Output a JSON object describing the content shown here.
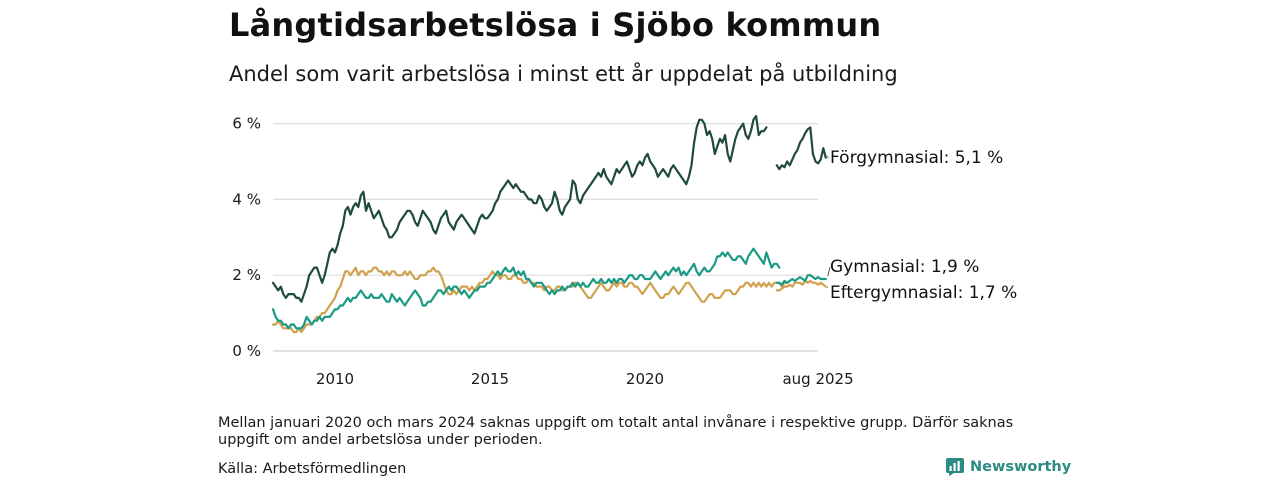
{
  "title": "Långtidsarbetslösa i Sjöbo kommun",
  "subtitle": "Andel som varit arbetslösa i minst ett år uppdelat på utbildning",
  "note": "Mellan januari 2020 och mars 2024 saknas uppgift om totalt antal invånare i respektive grupp. Därför saknas uppgift om andel arbetslösa under perioden.",
  "source": "Källa: Arbetsförmedlingen",
  "brand": "Newsworthy",
  "chart_data": {
    "type": "line",
    "yticks": [
      "0 %",
      "2 %",
      "4 %",
      "6 %"
    ],
    "ylim": [
      0,
      6.6
    ],
    "xticks": [
      "2010",
      "2015",
      "2020",
      "aug 2025"
    ],
    "grid": true,
    "series": [
      {
        "name": "Förgymnasial",
        "label": "Förgymnasial: 5,1 %",
        "color": "#1f4a3e",
        "segments": [
          {
            "start": "2008-01",
            "values": [
              1.8,
              1.7,
              1.6,
              1.7,
              1.5,
              1.4,
              1.5,
              1.5,
              1.5,
              1.4,
              1.4,
              1.3,
              1.5,
              1.7,
              2.0,
              2.1,
              2.2,
              2.2,
              2.0,
              1.8,
              2.0,
              2.3,
              2.6,
              2.7,
              2.6,
              2.8,
              3.1,
              3.3,
              3.7,
              3.8,
              3.6,
              3.8,
              3.9,
              3.8,
              4.1,
              4.2,
              3.7,
              3.9,
              3.7,
              3.5,
              3.6,
              3.7,
              3.5,
              3.3,
              3.2,
              3.0,
              3.0,
              3.1,
              3.2,
              3.4,
              3.5,
              3.6,
              3.7,
              3.7,
              3.6,
              3.4,
              3.3,
              3.5,
              3.7,
              3.6,
              3.5,
              3.4,
              3.2,
              3.1,
              3.3,
              3.5,
              3.6,
              3.7,
              3.4,
              3.3,
              3.2,
              3.4,
              3.5,
              3.6,
              3.5,
              3.4,
              3.3,
              3.2,
              3.1,
              3.3,
              3.5,
              3.6,
              3.5,
              3.5,
              3.6,
              3.7,
              3.9,
              4.0,
              4.2,
              4.3,
              4.4,
              4.5,
              4.4,
              4.3,
              4.4,
              4.3,
              4.2,
              4.2,
              4.1,
              4.0,
              4.0,
              3.9,
              3.9,
              4.1,
              4.0,
              3.8,
              3.7,
              3.8,
              3.9,
              4.2,
              4.0,
              3.7,
              3.6,
              3.8,
              3.9,
              4.0,
              4.5,
              4.4,
              4.0,
              3.9,
              4.1,
              4.2,
              4.3,
              4.4,
              4.5,
              4.6,
              4.7,
              4.6,
              4.8,
              4.6,
              4.5,
              4.4,
              4.6,
              4.8,
              4.7,
              4.8,
              4.9,
              5.0,
              4.8,
              4.6,
              4.7,
              4.9,
              5.0,
              4.9,
              5.1,
              5.2,
              5.0,
              4.9,
              4.8,
              4.6,
              4.7,
              4.8,
              4.7,
              4.6,
              4.8,
              4.9,
              4.8,
              4.7,
              4.6,
              4.5,
              4.4,
              4.6,
              4.9,
              5.5,
              5.9,
              6.1,
              6.1,
              6.0,
              5.7,
              5.8,
              5.6,
              5.2,
              5.4,
              5.6,
              5.5,
              5.7,
              5.2,
              5.0,
              5.3,
              5.6,
              5.8,
              5.9,
              6.0,
              5.7,
              5.6,
              5.8,
              6.1,
              6.2,
              5.7,
              5.8,
              5.8,
              5.9
            ]
          },
          {
            "start": "2024-04",
            "values": [
              4.9,
              4.8,
              4.9,
              4.85,
              5.0,
              4.9,
              5.05,
              5.2,
              5.3,
              5.5,
              5.6,
              5.75,
              5.85,
              5.9,
              5.2,
              5.0,
              4.95,
              5.05,
              5.35,
              5.1
            ]
          }
        ]
      },
      {
        "name": "Gymnasial",
        "label": "Gymnasial: 1,9 %",
        "color": "#1a9a85",
        "segments": [
          {
            "start": "2008-01",
            "values": [
              1.1,
              0.9,
              0.8,
              0.8,
              0.7,
              0.7,
              0.6,
              0.7,
              0.7,
              0.6,
              0.6,
              0.6,
              0.7,
              0.9,
              0.8,
              0.7,
              0.8,
              0.8,
              0.9,
              0.8,
              0.9,
              0.9,
              0.9,
              1.0,
              1.1,
              1.1,
              1.2,
              1.2,
              1.3,
              1.4,
              1.3,
              1.4,
              1.4,
              1.5,
              1.6,
              1.5,
              1.4,
              1.4,
              1.5,
              1.4,
              1.4,
              1.4,
              1.5,
              1.4,
              1.3,
              1.3,
              1.5,
              1.4,
              1.3,
              1.4,
              1.3,
              1.2,
              1.3,
              1.4,
              1.5,
              1.6,
              1.5,
              1.4,
              1.2,
              1.2,
              1.3,
              1.3,
              1.4,
              1.5,
              1.6,
              1.6,
              1.5,
              1.6,
              1.7,
              1.6,
              1.7,
              1.7,
              1.6,
              1.5,
              1.6,
              1.5,
              1.4,
              1.5,
              1.6,
              1.6,
              1.7,
              1.7,
              1.7,
              1.8,
              1.8,
              1.9,
              2.0,
              2.1,
              2.0,
              2.1,
              2.2,
              2.1,
              2.1,
              2.2,
              2.0,
              2.1,
              2.0,
              2.1,
              1.9,
              1.9,
              1.8,
              1.7,
              1.8,
              1.8,
              1.8,
              1.7,
              1.6,
              1.5,
              1.6,
              1.5,
              1.6,
              1.6,
              1.7,
              1.6,
              1.7,
              1.7,
              1.8,
              1.7,
              1.8,
              1.7,
              1.8,
              1.7,
              1.7,
              1.8,
              1.9,
              1.8,
              1.8,
              1.9,
              1.8,
              1.8,
              1.9,
              1.8,
              1.9,
              1.8,
              1.9,
              1.9,
              1.8,
              1.9,
              2.0,
              2.0,
              1.9,
              1.9,
              2.0,
              2.0,
              1.9,
              1.9,
              1.9,
              2.0,
              2.1,
              2.0,
              1.9,
              2.0,
              2.1,
              2.0,
              2.1,
              2.2,
              2.1,
              2.2,
              2.0,
              2.1,
              2.0,
              2.1,
              2.2,
              2.3,
              2.1,
              2.0,
              2.1,
              2.2,
              2.1,
              2.1,
              2.2,
              2.3,
              2.5,
              2.5,
              2.6,
              2.5,
              2.6,
              2.5,
              2.4,
              2.4,
              2.5,
              2.5,
              2.4,
              2.3,
              2.5,
              2.6,
              2.7,
              2.6,
              2.5,
              2.4,
              2.3,
              2.6,
              2.4,
              2.2,
              2.3,
              2.3,
              2.2
            ]
          },
          {
            "start": "2024-04",
            "values": [
              1.8,
              1.8,
              1.75,
              1.85,
              1.8,
              1.85,
              1.9,
              1.85,
              1.9,
              1.95,
              1.9,
              1.85,
              2.0,
              2.0,
              1.95,
              1.9,
              1.95,
              1.9,
              1.9,
              1.9
            ]
          }
        ]
      },
      {
        "name": "Eftergymnasial",
        "label": "Eftergymnasial: 1,7 %",
        "color": "#d1a24e",
        "segments": [
          {
            "start": "2008-01",
            "values": [
              0.7,
              0.7,
              0.8,
              0.7,
              0.6,
              0.6,
              0.6,
              0.6,
              0.5,
              0.5,
              0.6,
              0.5,
              0.6,
              0.7,
              0.7,
              0.7,
              0.8,
              0.9,
              0.9,
              1.0,
              1.0,
              1.1,
              1.2,
              1.3,
              1.4,
              1.6,
              1.7,
              1.9,
              2.1,
              2.1,
              2.0,
              2.1,
              2.2,
              2.0,
              2.1,
              2.1,
              2.0,
              2.1,
              2.1,
              2.2,
              2.2,
              2.1,
              2.1,
              2.0,
              2.1,
              2.0,
              2.1,
              2.1,
              2.0,
              2.0,
              2.0,
              2.1,
              2.0,
              2.1,
              2.0,
              1.9,
              1.9,
              2.0,
              2.0,
              2.0,
              2.1,
              2.1,
              2.2,
              2.1,
              2.1,
              2.0,
              1.8,
              1.6,
              1.5,
              1.5,
              1.6,
              1.5,
              1.6,
              1.7,
              1.7,
              1.7,
              1.6,
              1.7,
              1.6,
              1.7,
              1.8,
              1.8,
              1.9,
              1.9,
              2.0,
              2.1,
              2.0,
              2.0,
              1.9,
              2.0,
              2.0,
              1.9,
              1.9,
              2.0,
              2.0,
              1.9,
              1.9,
              1.8,
              1.8,
              1.9,
              1.8,
              1.8,
              1.7,
              1.7,
              1.7,
              1.6,
              1.7,
              1.7,
              1.6,
              1.6,
              1.7,
              1.7,
              1.6,
              1.6,
              1.7,
              1.7,
              1.7,
              1.8,
              1.8,
              1.7,
              1.6,
              1.5,
              1.4,
              1.4,
              1.5,
              1.6,
              1.7,
              1.8,
              1.7,
              1.6,
              1.6,
              1.7,
              1.8,
              1.7,
              1.8,
              1.8,
              1.7,
              1.7,
              1.8,
              1.8,
              1.7,
              1.7,
              1.6,
              1.5,
              1.6,
              1.7,
              1.8,
              1.7,
              1.6,
              1.5,
              1.4,
              1.4,
              1.5,
              1.5,
              1.6,
              1.7,
              1.6,
              1.5,
              1.6,
              1.7,
              1.8,
              1.8,
              1.7,
              1.6,
              1.5,
              1.4,
              1.3,
              1.3,
              1.4,
              1.5,
              1.5,
              1.4,
              1.4,
              1.4,
              1.5,
              1.6,
              1.6,
              1.6,
              1.5,
              1.5,
              1.6,
              1.7,
              1.7,
              1.8,
              1.8,
              1.7,
              1.8,
              1.7,
              1.8,
              1.7,
              1.8,
              1.7,
              1.8,
              1.7,
              1.8,
              1.8,
              1.8,
              1.7,
              1.8,
              1.8
            ]
          },
          {
            "start": "2024-04",
            "values": [
              1.6,
              1.6,
              1.65,
              1.7,
              1.7,
              1.75,
              1.7,
              1.8,
              1.8,
              1.8,
              1.75,
              1.85,
              1.8,
              1.85,
              1.8,
              1.8,
              1.75,
              1.8,
              1.75,
              1.7
            ]
          }
        ]
      }
    ]
  }
}
